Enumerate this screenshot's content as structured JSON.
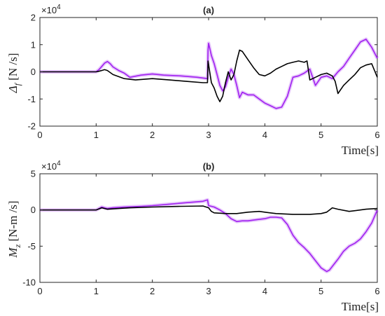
{
  "chart_data": [
    {
      "type": "line",
      "title": "(a)",
      "xlabel": "Time[s]",
      "ylabel": "Δ_f [N /s]",
      "ylabel_main": "Δ",
      "ylabel_sub": "f",
      "ylabel_rest": " [N /s]",
      "y_multiplier": "×10^4",
      "y_multiplier_base": "×10",
      "y_multiplier_exp": "4",
      "xlim": [
        0,
        6
      ],
      "ylim": [
        -2,
        2
      ],
      "xticks": [
        "0",
        "1",
        "2",
        "3",
        "4",
        "5",
        "6"
      ],
      "yticks": [
        "-2",
        "-1",
        "0",
        "1",
        "2"
      ],
      "grid": false,
      "series": [
        {
          "color": "#a020f0",
          "x": [
            0,
            0.5,
            1.0,
            1.05,
            1.1,
            1.15,
            1.2,
            1.25,
            1.3,
            1.4,
            1.5,
            1.6,
            1.8,
            2.0,
            2.2,
            2.5,
            2.8,
            2.98,
            2.99,
            3.0,
            3.05,
            3.1,
            3.15,
            3.2,
            3.25,
            3.3,
            3.35,
            3.4,
            3.45,
            3.5,
            3.55,
            3.6,
            3.7,
            3.8,
            3.9,
            4.0,
            4.1,
            4.2,
            4.3,
            4.4,
            4.5,
            4.6,
            4.7,
            4.8,
            4.9,
            5.0,
            5.1,
            5.2,
            5.3,
            5.4,
            5.5,
            5.6,
            5.7,
            5.8,
            5.9,
            6.0
          ],
          "y": [
            0,
            0,
            0,
            0.08,
            0.2,
            0.32,
            0.38,
            0.3,
            0.18,
            0.05,
            -0.05,
            -0.2,
            -0.12,
            -0.08,
            -0.12,
            -0.15,
            -0.2,
            -0.25,
            0.8,
            1.05,
            0.6,
            0.3,
            -0.1,
            -0.5,
            -0.7,
            -0.55,
            -0.2,
            0.1,
            -0.1,
            -0.5,
            -0.95,
            -0.75,
            -0.85,
            -0.85,
            -1.0,
            -1.15,
            -1.25,
            -1.35,
            -1.3,
            -0.9,
            -0.2,
            -0.15,
            -0.05,
            0.1,
            -0.5,
            -0.2,
            -0.15,
            -0.25,
            0,
            0.2,
            0.5,
            0.8,
            1.1,
            1.2,
            0.9,
            0.5
          ]
        },
        {
          "color": "#000000",
          "x": [
            0,
            0.5,
            1.0,
            1.05,
            1.1,
            1.15,
            1.2,
            1.3,
            1.5,
            1.7,
            2.0,
            2.3,
            2.6,
            2.9,
            2.98,
            2.99,
            3.05,
            3.1,
            3.15,
            3.2,
            3.25,
            3.3,
            3.35,
            3.4,
            3.45,
            3.5,
            3.55,
            3.6,
            3.7,
            3.8,
            3.9,
            4.0,
            4.1,
            4.2,
            4.3,
            4.4,
            4.5,
            4.6,
            4.7,
            4.75,
            4.8,
            4.9,
            5.0,
            5.1,
            5.2,
            5.25,
            5.3,
            5.4,
            5.5,
            5.6,
            5.7,
            5.8,
            5.9,
            6.0
          ],
          "y": [
            0,
            0,
            0,
            0.02,
            0.05,
            0.08,
            0.05,
            -0.1,
            -0.25,
            -0.3,
            -0.25,
            -0.3,
            -0.35,
            -0.4,
            -0.4,
            0.4,
            -0.4,
            -0.6,
            -0.9,
            -1.1,
            -0.9,
            -0.4,
            0,
            -0.3,
            -0.1,
            0.4,
            0.8,
            0.75,
            0.45,
            0.15,
            -0.1,
            -0.15,
            -0.05,
            0.1,
            0.2,
            0.3,
            0.35,
            0.4,
            0.35,
            0.4,
            -0.3,
            -0.2,
            -0.1,
            -0.05,
            -0.15,
            -0.35,
            -0.8,
            -0.5,
            -0.3,
            -0.1,
            0.15,
            0.25,
            0.3,
            -0.2
          ]
        }
      ]
    },
    {
      "type": "line",
      "title": "(b)",
      "xlabel": "Time[s]",
      "ylabel": "M_z [N-m /s]",
      "ylabel_main": "M",
      "ylabel_sub": "z",
      "ylabel_rest": " [N-m /s]",
      "y_multiplier": "×10^4",
      "y_multiplier_base": "×10",
      "y_multiplier_exp": "4",
      "xlim": [
        0,
        6
      ],
      "ylim": [
        -10,
        5
      ],
      "xticks": [
        "0",
        "1",
        "2",
        "3",
        "4",
        "5",
        "6"
      ],
      "yticks": [
        "-10",
        "-5",
        "0",
        "5"
      ],
      "grid": false,
      "series": [
        {
          "color": "#a020f0",
          "x": [
            0,
            0.5,
            1.0,
            1.05,
            1.1,
            1.15,
            1.2,
            1.3,
            1.5,
            1.8,
            2.0,
            2.3,
            2.6,
            2.9,
            2.98,
            3.0,
            3.05,
            3.1,
            3.2,
            3.3,
            3.4,
            3.5,
            3.6,
            3.7,
            3.8,
            3.9,
            4.0,
            4.1,
            4.2,
            4.3,
            4.4,
            4.5,
            4.6,
            4.7,
            4.8,
            4.9,
            5.0,
            5.1,
            5.15,
            5.2,
            5.3,
            5.4,
            5.5,
            5.6,
            5.7,
            5.8,
            5.9,
            6.0
          ],
          "y": [
            0,
            0,
            0,
            0.2,
            0.4,
            0.3,
            0.2,
            0.3,
            0.4,
            0.5,
            0.6,
            0.8,
            1.0,
            1.2,
            1.4,
            0.6,
            0.5,
            0.4,
            0,
            -0.5,
            -1.2,
            -1.6,
            -1.5,
            -1.5,
            -1.4,
            -1.3,
            -1.2,
            -1.0,
            -1.0,
            -1.1,
            -2.0,
            -3.5,
            -4.5,
            -5.2,
            -6.0,
            -7.0,
            -8.0,
            -8.5,
            -8.3,
            -7.8,
            -6.8,
            -5.7,
            -5.0,
            -4.6,
            -4.0,
            -3.0,
            -1.8,
            0
          ]
        },
        {
          "color": "#000000",
          "x": [
            0,
            0.5,
            1.0,
            1.05,
            1.1,
            1.2,
            1.4,
            1.6,
            2.0,
            2.5,
            2.9,
            3.0,
            3.05,
            3.1,
            3.3,
            3.5,
            3.7,
            3.9,
            4.0,
            4.2,
            4.5,
            4.8,
            5.0,
            5.1,
            5.15,
            5.2,
            5.3,
            5.5,
            5.8,
            6.0
          ],
          "y": [
            0,
            0,
            0,
            0.15,
            0.3,
            0.1,
            0.2,
            0.3,
            0.4,
            0.5,
            0.55,
            0.3,
            -0.2,
            -0.4,
            -0.5,
            -0.5,
            -0.3,
            -0.2,
            -0.3,
            -0.5,
            -0.6,
            -0.6,
            -0.5,
            -0.3,
            0,
            0.3,
            0.1,
            -0.2,
            0.1,
            0.2
          ]
        }
      ]
    }
  ]
}
